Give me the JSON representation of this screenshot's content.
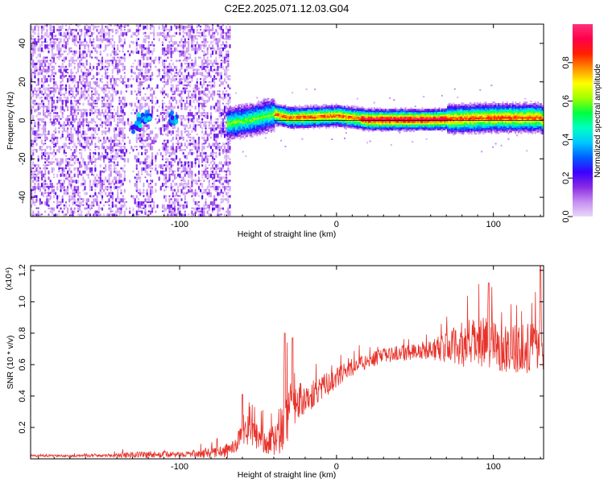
{
  "title": "C2E2.2025.071.12.03.G04",
  "chart_data": [
    {
      "type": "heatmap",
      "title": "C2E2.2025.071.12.03.G04",
      "xlabel": "Height of straight line (km)",
      "ylabel": "Frequency (Hz)",
      "xlim": [
        -195,
        132
      ],
      "ylim": [
        -50,
        50
      ],
      "xticks": [
        -100,
        0,
        100
      ],
      "xtick_labels": [
        "-100",
        "0",
        "100"
      ],
      "yticks": [
        -40,
        -20,
        0,
        20,
        40
      ],
      "ytick_labels": [
        "-40",
        "-20",
        "0",
        "20",
        "40"
      ],
      "colorbar": {
        "label": "Normalized spectral amplitude",
        "range": [
          0,
          1
        ],
        "ticks": [
          0.0,
          0.2,
          0.4,
          0.6,
          0.8
        ],
        "tick_labels": [
          "0.0",
          "0.2",
          "0.4",
          "0.6",
          "0.8"
        ],
        "colors": [
          "#e9d8f7",
          "#c58df2",
          "#8a2be2",
          "#3a00ff",
          "#0060ff",
          "#00c8ff",
          "#00ffc0",
          "#00ff40",
          "#a0ff00",
          "#ffff00",
          "#ff9000",
          "#ff2000",
          "#ff004a",
          "#ff2f7a"
        ]
      },
      "regions": [
        {
          "x": [
            -195,
            -68
          ],
          "description": "broadband noise",
          "freq_range": [
            -50,
            50
          ],
          "amplitude": 0.15
        },
        {
          "x": [
            -68,
            132
          ],
          "description": "narrow band near 0 Hz",
          "freq_center": 0,
          "amplitude": 0.9
        }
      ],
      "ridge_center_hz": [
        {
          "x": -130,
          "y": -3
        },
        {
          "x": -124,
          "y": 0
        },
        {
          "x": -120,
          "y": 2
        },
        {
          "x": -104,
          "y": 1
        },
        {
          "x": -70,
          "y": -2
        },
        {
          "x": -55,
          "y": 0
        },
        {
          "x": -40,
          "y": 3
        },
        {
          "x": -30,
          "y": 1
        },
        {
          "x": 0,
          "y": 2
        },
        {
          "x": 20,
          "y": 0
        },
        {
          "x": 60,
          "y": 0
        },
        {
          "x": 100,
          "y": 1
        },
        {
          "x": 130,
          "y": 1
        }
      ]
    },
    {
      "type": "line",
      "xlabel": "Height of straight line (km)",
      "ylabel": "SNR (10 * v/v)",
      "y_multiplier": "(x10⁴)",
      "xlim": [
        -195,
        132
      ],
      "ylim": [
        0,
        1.23
      ],
      "xticks": [
        -100,
        0,
        100
      ],
      "xtick_labels": [
        "-100",
        "0",
        "100"
      ],
      "yticks": [
        0.2,
        0.4,
        0.6,
        0.8,
        1.0,
        1.2
      ],
      "ytick_labels": [
        "0.2",
        "0.4",
        "0.6",
        "0.8",
        "1.0",
        "1.2"
      ],
      "color": "#e8322a",
      "series": [
        {
          "x": [
            -195,
            -150,
            -125,
            -120,
            -100,
            -80,
            -68,
            -58,
            -50,
            -44,
            -35,
            -32,
            -30,
            -25,
            -18,
            -10,
            0,
            10,
            20,
            30,
            40,
            50,
            60,
            70,
            80,
            90,
            100,
            110,
            120,
            132
          ],
          "y": [
            0.02,
            0.02,
            0.03,
            0.03,
            0.03,
            0.04,
            0.06,
            0.18,
            0.15,
            0.12,
            0.14,
            0.33,
            0.36,
            0.38,
            0.4,
            0.46,
            0.52,
            0.59,
            0.63,
            0.66,
            0.68,
            0.69,
            0.7,
            0.72,
            0.74,
            0.76,
            0.75,
            0.72,
            0.72,
            0.72
          ],
          "spread": [
            0.01,
            0.01,
            0.03,
            0.03,
            0.02,
            0.04,
            0.06,
            0.1,
            0.12,
            0.1,
            0.14,
            0.3,
            0.2,
            0.16,
            0.12,
            0.1,
            0.08,
            0.07,
            0.06,
            0.06,
            0.06,
            0.07,
            0.08,
            0.12,
            0.18,
            0.2,
            0.2,
            0.2,
            0.2,
            0.2
          ],
          "peaks": [
            {
              "x": -60,
              "y": 0.41
            },
            {
              "x": -33,
              "y": 0.8
            },
            {
              "x": -28,
              "y": 0.77
            },
            {
              "x": 97,
              "y": 1.12
            },
            {
              "x": 130,
              "y": 1.23
            }
          ]
        }
      ]
    }
  ]
}
